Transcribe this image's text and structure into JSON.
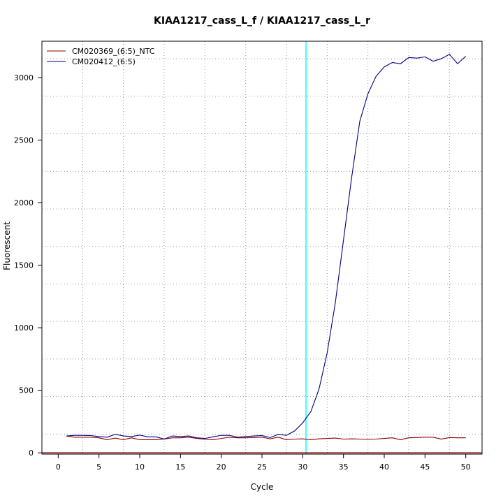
{
  "chart_data": {
    "type": "line",
    "title": "KIAA1217_cass_L_f / KIAA1217_cass_L_r",
    "xlabel": "Cycle",
    "ylabel": "Fluorescent",
    "xlim": [
      -2,
      52
    ],
    "ylim": [
      -10,
      3290
    ],
    "x_ticks": [
      0,
      5,
      10,
      15,
      20,
      25,
      30,
      35,
      40,
      45,
      50
    ],
    "y_ticks": [
      0,
      500,
      1000,
      1500,
      2000,
      2500,
      3000
    ],
    "x_grid": [
      3,
      8,
      13,
      18,
      23,
      28,
      33,
      38,
      43,
      48
    ],
    "y_grid": [
      150,
      450,
      750,
      1050,
      1350,
      1650,
      1950,
      2250,
      2550,
      2850,
      3150
    ],
    "grid": true,
    "legend": "top-left",
    "threshold_line": {
      "x": 30.4,
      "color": "#00ffff"
    },
    "baseline": {
      "y": 0,
      "color": "#8b0000"
    },
    "x": [
      1,
      2,
      3,
      4,
      5,
      6,
      7,
      8,
      9,
      10,
      11,
      12,
      13,
      14,
      15,
      16,
      17,
      18,
      19,
      20,
      21,
      22,
      23,
      24,
      25,
      26,
      27,
      28,
      29,
      30,
      31,
      32,
      33,
      34,
      35,
      36,
      37,
      38,
      39,
      40,
      41,
      42,
      43,
      44,
      45,
      46,
      47,
      48,
      49,
      50
    ],
    "series": [
      {
        "name": "CM020369_(6:5)_NTC",
        "color": "#8b0000",
        "values": [
          135,
          125,
          125,
          125,
          120,
          105,
          118,
          105,
          120,
          105,
          105,
          105,
          110,
          120,
          120,
          125,
          115,
          108,
          105,
          115,
          125,
          120,
          120,
          122,
          125,
          112,
          125,
          105,
          110,
          112,
          105,
          112,
          115,
          118,
          110,
          112,
          110,
          108,
          110,
          115,
          120,
          105,
          120,
          122,
          125,
          125,
          110,
          122,
          120,
          120
        ]
      },
      {
        "name": "CM020412_(6:5)",
        "color": "#000080",
        "values": [
          135,
          140,
          140,
          138,
          130,
          125,
          148,
          135,
          130,
          142,
          128,
          128,
          110,
          135,
          130,
          135,
          120,
          115,
          128,
          140,
          140,
          125,
          130,
          135,
          138,
          122,
          148,
          140,
          175,
          240,
          330,
          510,
          800,
          1200,
          1700,
          2200,
          2650,
          2870,
          3010,
          3085,
          3120,
          3110,
          3160,
          3155,
          3165,
          3130,
          3150,
          3185,
          3110,
          3170
        ]
      }
    ]
  }
}
